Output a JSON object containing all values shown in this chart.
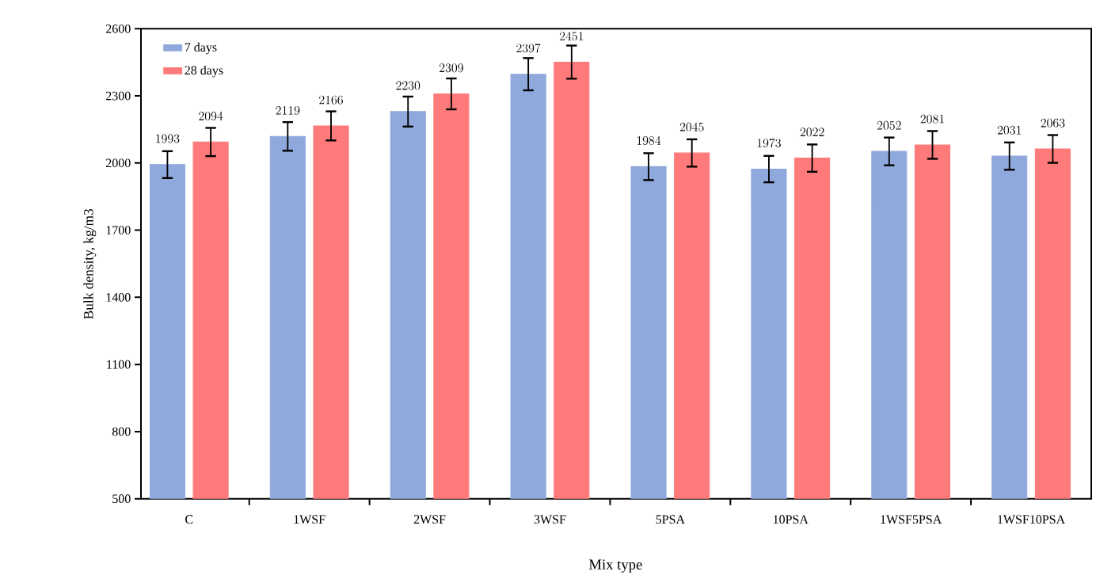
{
  "chart_data": {
    "type": "bar",
    "xlabel": "Mix type",
    "ylabel": "Bulk density, kg/m3",
    "categories": [
      "C",
      "1WSF",
      "2WSF",
      "3WSF",
      "5PSA",
      "10PSA",
      "1WSF5PSA",
      "1WSF10PSA"
    ],
    "series": [
      {
        "name": "7 days",
        "color": "#8fa9dc",
        "values": [
          1993,
          2119,
          2230,
          2397,
          1984,
          1973,
          2052,
          2031
        ],
        "errors": [
          60,
          64,
          67,
          72,
          60,
          59,
          62,
          61
        ]
      },
      {
        "name": "28 days",
        "color": "#ff7a7a",
        "values": [
          2094,
          2166,
          2309,
          2451,
          2045,
          2022,
          2081,
          2063
        ],
        "errors": [
          63,
          65,
          69,
          74,
          61,
          61,
          62,
          62
        ]
      }
    ],
    "ylim": [
      500,
      2600
    ],
    "yticks": [
      500,
      800,
      1100,
      1400,
      1700,
      2000,
      2300,
      2600
    ],
    "data_labels": true,
    "legend": "top left"
  }
}
